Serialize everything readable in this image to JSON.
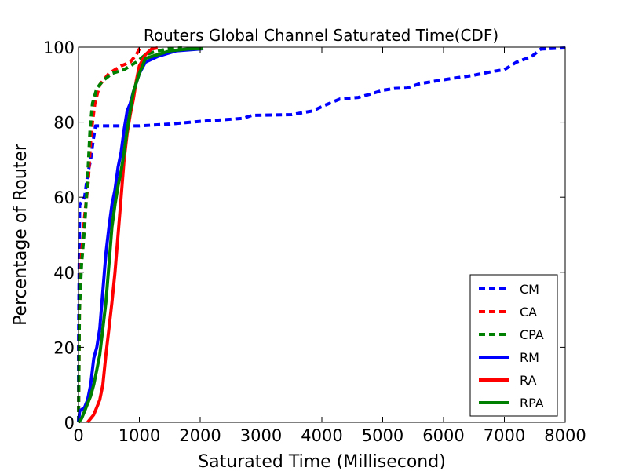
{
  "chart_data": {
    "type": "line",
    "title": "Routers Global Channel Saturated Time(CDF)",
    "xlabel": "Saturated Time (Millisecond)",
    "ylabel": "Percentage of Router",
    "xlim": [
      0,
      8000
    ],
    "ylim": [
      0,
      100
    ],
    "xticks": [
      "0",
      "1000",
      "2000",
      "3000",
      "4000",
      "5000",
      "6000",
      "7000",
      "8000"
    ],
    "yticks": [
      "0",
      "20",
      "40",
      "60",
      "80",
      "100"
    ],
    "grid": false,
    "legend_position": "lower-right",
    "series": [
      {
        "name": "CM",
        "color": "#0000ff",
        "style": "dashed",
        "points": [
          [
            0,
            0
          ],
          [
            0,
            20
          ],
          [
            10,
            40
          ],
          [
            20,
            58
          ],
          [
            100,
            60
          ],
          [
            150,
            66
          ],
          [
            200,
            70
          ],
          [
            240,
            75
          ],
          [
            280,
            79
          ],
          [
            1000,
            79
          ],
          [
            1500,
            79.5
          ],
          [
            2000,
            80.2
          ],
          [
            2700,
            81
          ],
          [
            2850,
            81.8
          ],
          [
            3500,
            82
          ],
          [
            3850,
            83
          ],
          [
            4050,
            84.5
          ],
          [
            4300,
            86.2
          ],
          [
            4600,
            86.6
          ],
          [
            4800,
            87.5
          ],
          [
            5000,
            88.5
          ],
          [
            5200,
            89
          ],
          [
            5400,
            89.1
          ],
          [
            5600,
            90.2
          ],
          [
            5800,
            90.8
          ],
          [
            6200,
            91.8
          ],
          [
            6500,
            92.5
          ],
          [
            6800,
            93.5
          ],
          [
            7000,
            94
          ],
          [
            7200,
            96
          ],
          [
            7450,
            97.5
          ],
          [
            7600,
            99.5
          ],
          [
            8000,
            99.8
          ]
        ]
      },
      {
        "name": "CA",
        "color": "#ff0000",
        "style": "dashed",
        "points": [
          [
            0,
            0
          ],
          [
            5,
            10
          ],
          [
            15,
            30
          ],
          [
            50,
            45
          ],
          [
            100,
            55
          ],
          [
            160,
            64
          ],
          [
            200,
            75
          ],
          [
            230,
            80
          ],
          [
            270,
            85
          ],
          [
            350,
            90
          ],
          [
            500,
            93
          ],
          [
            700,
            95
          ],
          [
            850,
            96
          ],
          [
            950,
            98
          ],
          [
            1000,
            99.5
          ],
          [
            1050,
            99.8
          ]
        ]
      },
      {
        "name": "CPA",
        "color": "#008000",
        "style": "dashed",
        "points": [
          [
            0,
            0
          ],
          [
            5,
            10
          ],
          [
            15,
            30
          ],
          [
            50,
            42
          ],
          [
            100,
            52
          ],
          [
            150,
            65
          ],
          [
            190,
            78
          ],
          [
            230,
            85
          ],
          [
            300,
            89
          ],
          [
            400,
            91
          ],
          [
            550,
            93
          ],
          [
            750,
            94
          ],
          [
            950,
            96
          ],
          [
            1100,
            98
          ],
          [
            1300,
            99
          ],
          [
            1500,
            99.6
          ],
          [
            1700,
            99.8
          ]
        ]
      },
      {
        "name": "RM",
        "color": "#0000ff",
        "style": "solid",
        "points": [
          [
            0,
            0
          ],
          [
            20,
            3
          ],
          [
            100,
            4
          ],
          [
            150,
            6
          ],
          [
            200,
            10
          ],
          [
            250,
            17
          ],
          [
            300,
            20
          ],
          [
            350,
            25
          ],
          [
            400,
            35
          ],
          [
            450,
            45
          ],
          [
            500,
            52
          ],
          [
            550,
            58
          ],
          [
            600,
            62
          ],
          [
            650,
            68
          ],
          [
            700,
            72
          ],
          [
            750,
            78
          ],
          [
            800,
            83
          ],
          [
            850,
            85
          ],
          [
            900,
            88
          ],
          [
            1000,
            93
          ],
          [
            1100,
            96
          ],
          [
            1300,
            97.5
          ],
          [
            1600,
            99
          ],
          [
            2000,
            99.5
          ],
          [
            2050,
            99.6
          ]
        ]
      },
      {
        "name": "RA",
        "color": "#ff0000",
        "style": "solid",
        "points": [
          [
            150,
            0
          ],
          [
            200,
            1
          ],
          [
            250,
            2
          ],
          [
            300,
            4
          ],
          [
            350,
            6
          ],
          [
            400,
            10
          ],
          [
            450,
            18
          ],
          [
            500,
            25
          ],
          [
            550,
            32
          ],
          [
            600,
            40
          ],
          [
            650,
            50
          ],
          [
            700,
            60
          ],
          [
            750,
            70
          ],
          [
            800,
            77
          ],
          [
            850,
            82
          ],
          [
            900,
            86
          ],
          [
            950,
            91
          ],
          [
            1000,
            95
          ],
          [
            1100,
            98
          ],
          [
            1200,
            99.5
          ],
          [
            1300,
            99.8
          ]
        ]
      },
      {
        "name": "RPA",
        "color": "#008000",
        "style": "solid",
        "points": [
          [
            0,
            0
          ],
          [
            50,
            1
          ],
          [
            100,
            3
          ],
          [
            150,
            5
          ],
          [
            200,
            7
          ],
          [
            250,
            10
          ],
          [
            300,
            14
          ],
          [
            350,
            18
          ],
          [
            400,
            25
          ],
          [
            450,
            32
          ],
          [
            500,
            42
          ],
          [
            550,
            52
          ],
          [
            600,
            58
          ],
          [
            650,
            63
          ],
          [
            700,
            67
          ],
          [
            750,
            72
          ],
          [
            800,
            78
          ],
          [
            850,
            83
          ],
          [
            900,
            88
          ],
          [
            1000,
            93
          ],
          [
            1100,
            97
          ],
          [
            1300,
            98
          ],
          [
            1500,
            99
          ],
          [
            1800,
            99.5
          ],
          [
            2050,
            99.6
          ]
        ]
      }
    ]
  }
}
